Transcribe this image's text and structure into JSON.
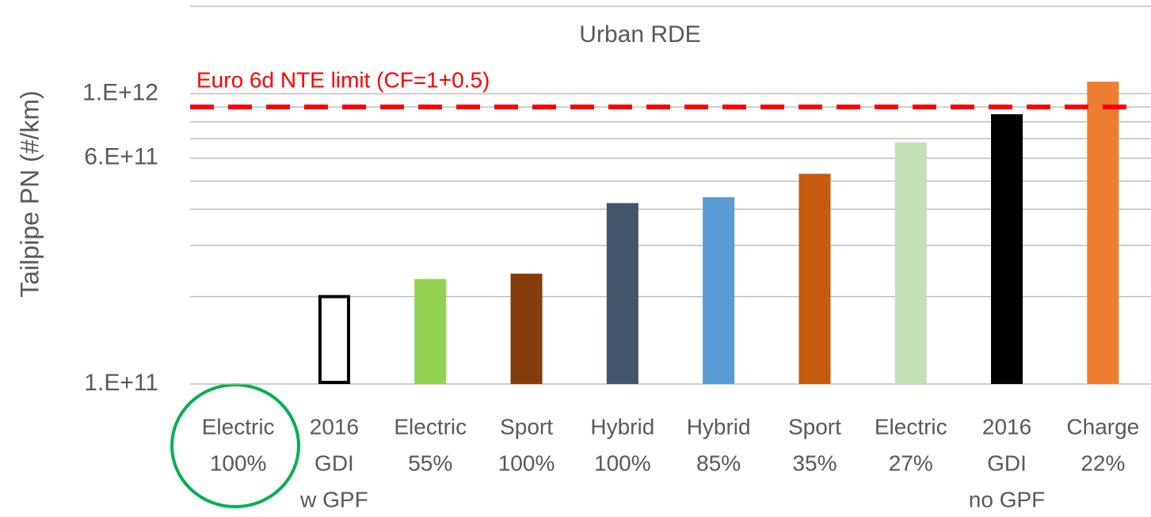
{
  "chart_data": {
    "type": "bar",
    "title": "Urban RDE",
    "y_label": "Tailpipe PN (#/km)",
    "log_y": true,
    "categories": [
      [
        "Electric",
        "100%"
      ],
      [
        "2016",
        "GDI",
        "w GPF"
      ],
      [
        "Electric",
        "55%"
      ],
      [
        "Sport",
        "100%"
      ],
      [
        "Hybrid",
        "100%"
      ],
      [
        "Hybrid",
        "85%"
      ],
      [
        "Sport",
        "35%"
      ],
      [
        "Electric",
        "27%"
      ],
      [
        "2016",
        "GDI",
        "no GPF"
      ],
      [
        "Charge",
        "22%"
      ]
    ],
    "values": [
      null,
      200000000000,
      230000000000,
      240000000000,
      420000000000,
      440000000000,
      530000000000,
      680000000000,
      850000000000,
      1100000000000
    ],
    "colors": [
      null,
      "#ffffff",
      "#92d050",
      "#843c0c",
      "#44546a",
      "#5b9bd5",
      "#c55a11",
      "#c5e0b4",
      "#000000",
      "#ed7d31"
    ],
    "edge_colors": [
      null,
      "#000000",
      null,
      null,
      null,
      null,
      null,
      null,
      null,
      null
    ],
    "ylim": [
      100000000000,
      2000000000000
    ],
    "yticks": [
      {
        "value": 100000000000,
        "label": "1.E+11"
      },
      {
        "value": 600000000000,
        "label": "6.E+11"
      },
      {
        "value": 1000000000000,
        "label": "1.E+12"
      }
    ],
    "minor_yticks": [
      200000000000,
      300000000000,
      400000000000,
      500000000000,
      700000000000,
      800000000000,
      900000000000,
      2000000000000
    ],
    "grid": true,
    "reference_line": {
      "label": "Euro 6d NTE limit (CF=1+0.5)",
      "value": 900000000000,
      "color": "#ff0000"
    }
  }
}
